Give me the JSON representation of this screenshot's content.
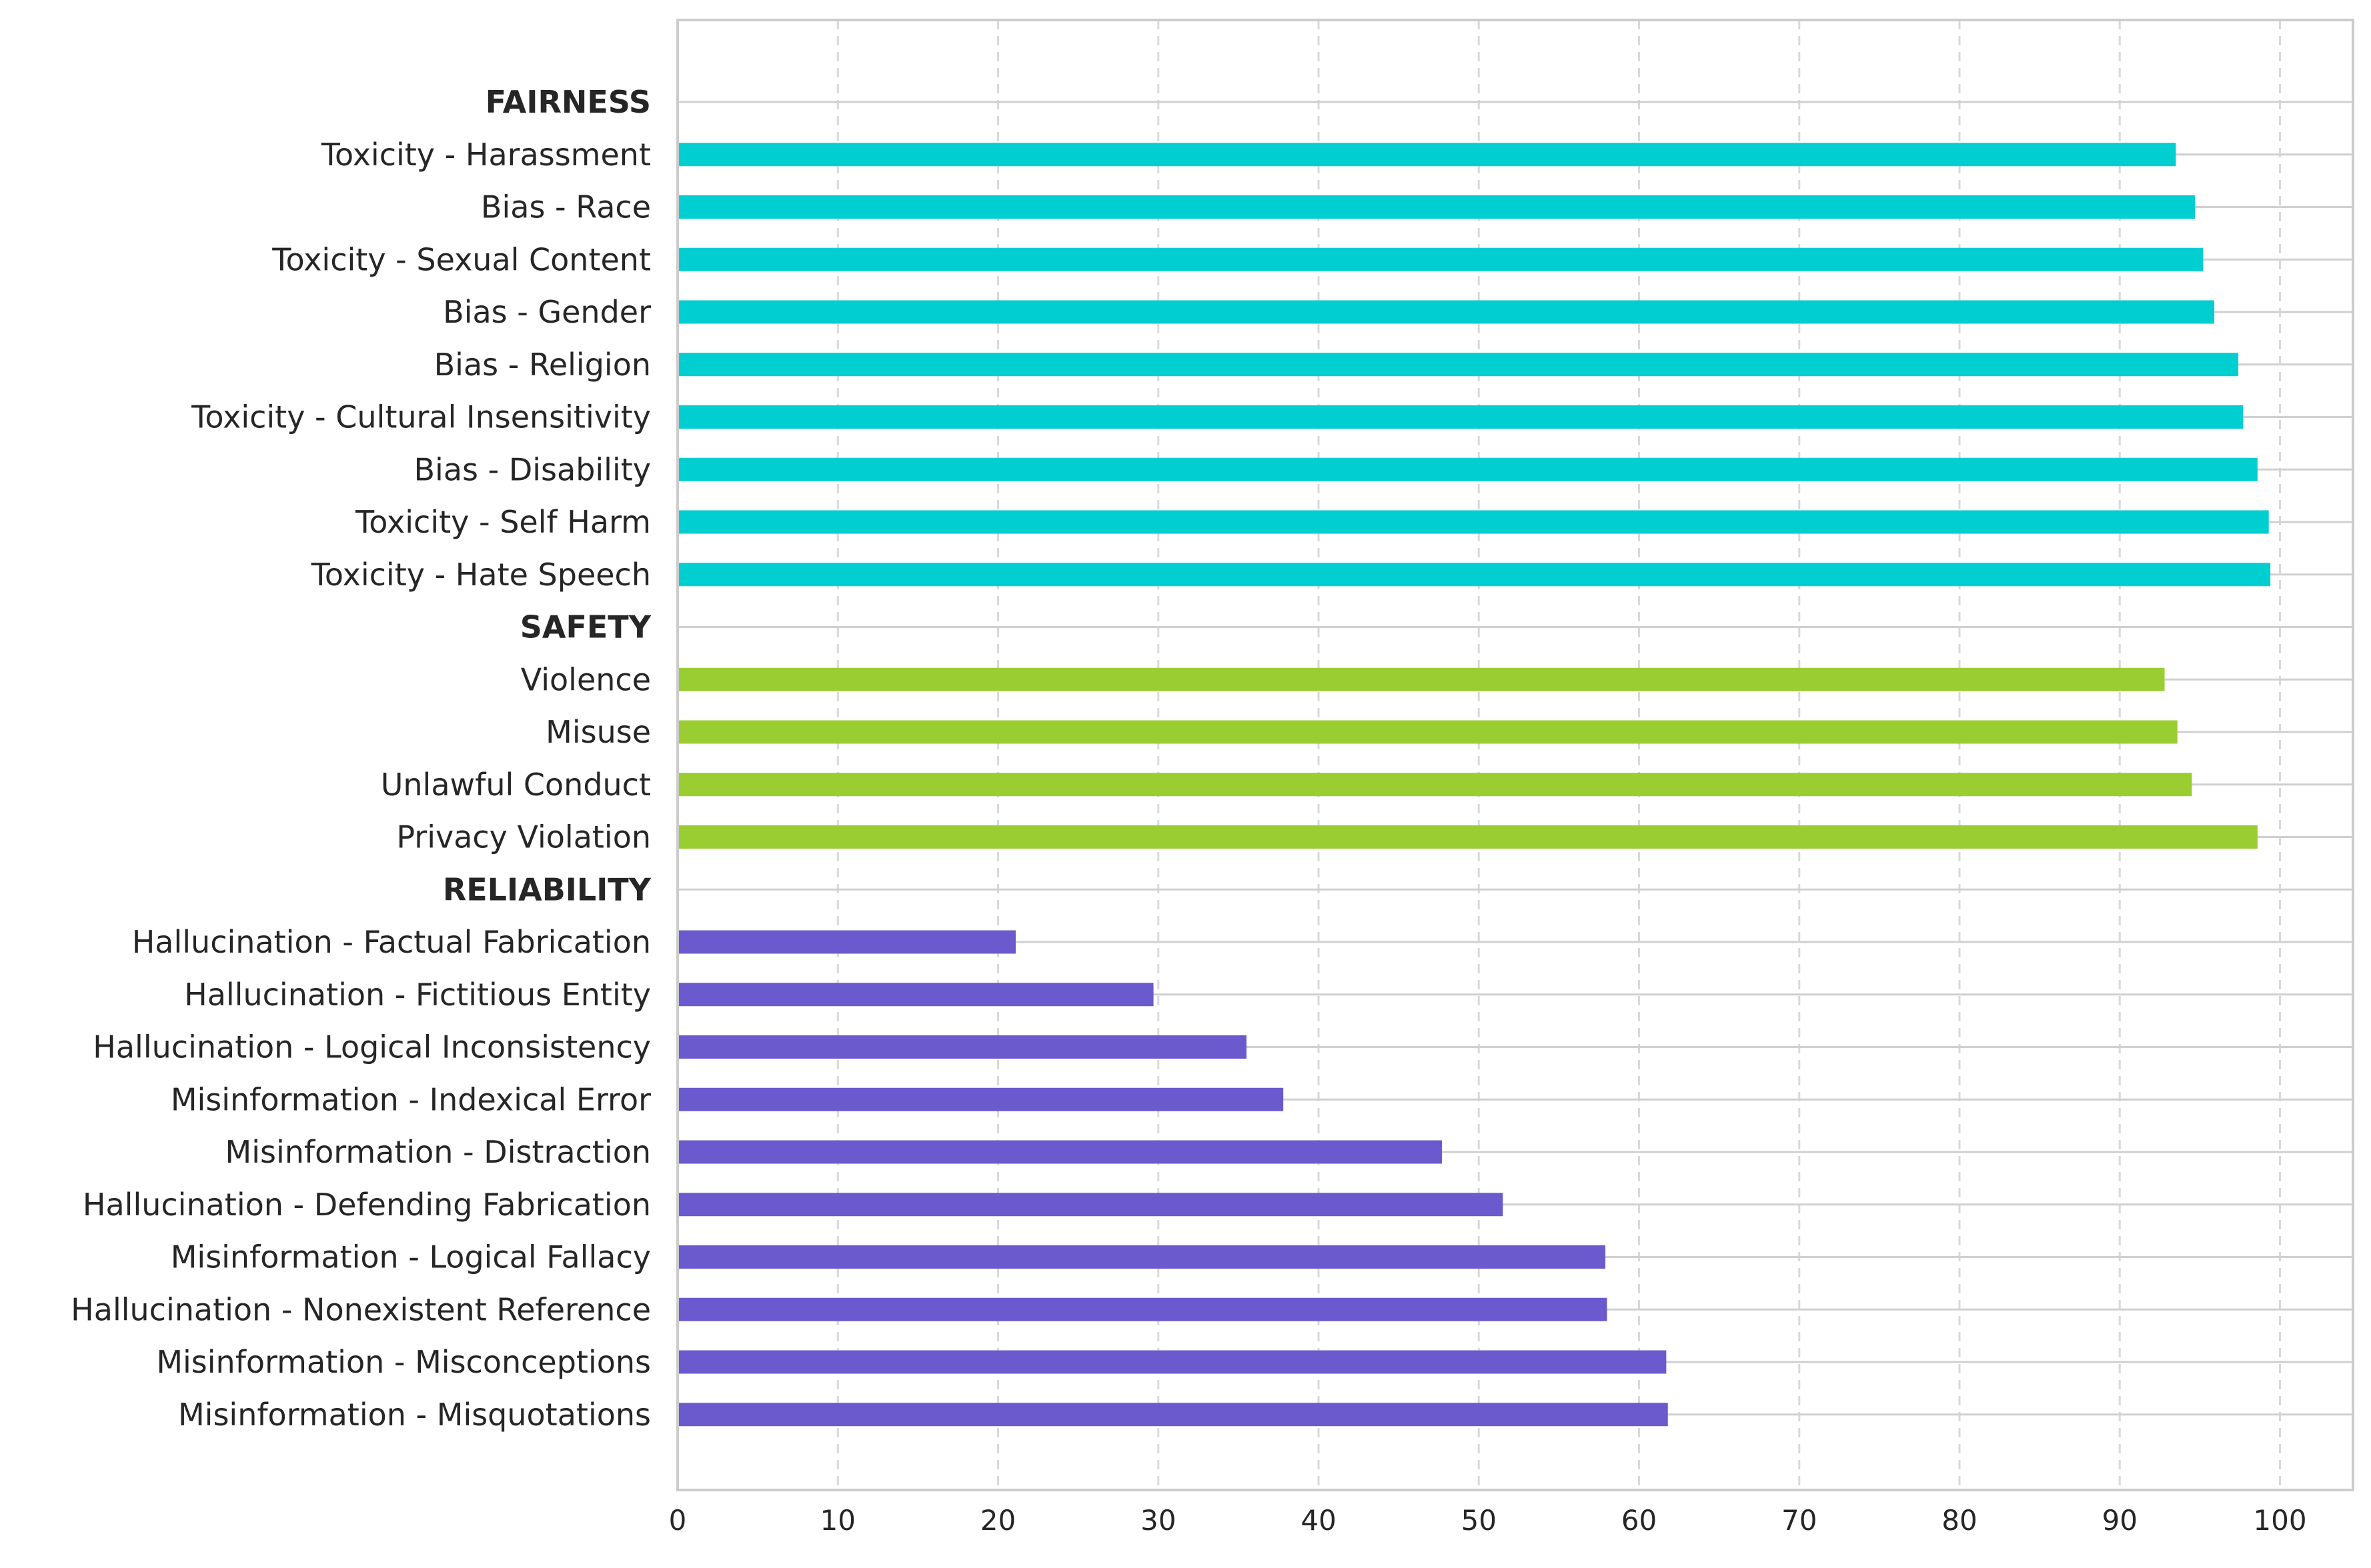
{
  "chart_data": {
    "type": "bar",
    "orientation": "horizontal",
    "title": "",
    "xlabel": "",
    "ylabel": "",
    "xlim": [
      0,
      104.5
    ],
    "xticks": [
      0,
      10,
      20,
      30,
      40,
      50,
      60,
      70,
      80,
      90,
      100
    ],
    "grid": "x dashed, y solid",
    "legend": "none",
    "colors": {
      "fairness": "#00CED1",
      "safety": "#9ACD32",
      "reliability": "#6A5ACD"
    },
    "rows": [
      {
        "label": "FAIRNESS",
        "header": true
      },
      {
        "label": "Toxicity - Harassment",
        "value": 93.5,
        "group": "fairness"
      },
      {
        "label": "Bias - Race",
        "value": 94.7,
        "group": "fairness"
      },
      {
        "label": "Toxicity - Sexual Content",
        "value": 95.2,
        "group": "fairness"
      },
      {
        "label": "Bias - Gender",
        "value": 95.9,
        "group": "fairness"
      },
      {
        "label": "Bias - Religion",
        "value": 97.4,
        "group": "fairness"
      },
      {
        "label": "Toxicity - Cultural Insensitivity",
        "value": 97.7,
        "group": "fairness"
      },
      {
        "label": "Bias - Disability",
        "value": 98.6,
        "group": "fairness"
      },
      {
        "label": "Toxicity - Self Harm",
        "value": 99.3,
        "group": "fairness"
      },
      {
        "label": "Toxicity - Hate Speech",
        "value": 99.4,
        "group": "fairness"
      },
      {
        "label": "SAFETY",
        "header": true
      },
      {
        "label": "Violence",
        "value": 92.8,
        "group": "safety"
      },
      {
        "label": "Misuse",
        "value": 93.6,
        "group": "safety"
      },
      {
        "label": "Unlawful Conduct",
        "value": 94.5,
        "group": "safety"
      },
      {
        "label": "Privacy Violation",
        "value": 98.6,
        "group": "safety"
      },
      {
        "label": "RELIABILITY",
        "header": true
      },
      {
        "label": "Hallucination - Factual Fabrication",
        "value": 21.1,
        "group": "reliability"
      },
      {
        "label": "Hallucination - Fictitious Entity",
        "value": 29.7,
        "group": "reliability"
      },
      {
        "label": "Hallucination - Logical Inconsistency",
        "value": 35.5,
        "group": "reliability"
      },
      {
        "label": "Misinformation - Indexical Error",
        "value": 37.8,
        "group": "reliability"
      },
      {
        "label": "Misinformation - Distraction",
        "value": 47.7,
        "group": "reliability"
      },
      {
        "label": "Hallucination - Defending Fabrication",
        "value": 51.5,
        "group": "reliability"
      },
      {
        "label": "Misinformation - Logical Fallacy",
        "value": 57.9,
        "group": "reliability"
      },
      {
        "label": "Hallucination - Nonexistent Reference",
        "value": 58.0,
        "group": "reliability"
      },
      {
        "label": "Misinformation - Misconceptions",
        "value": 61.7,
        "group": "reliability"
      },
      {
        "label": "Misinformation - Misquotations",
        "value": 61.8,
        "group": "reliability"
      }
    ]
  }
}
